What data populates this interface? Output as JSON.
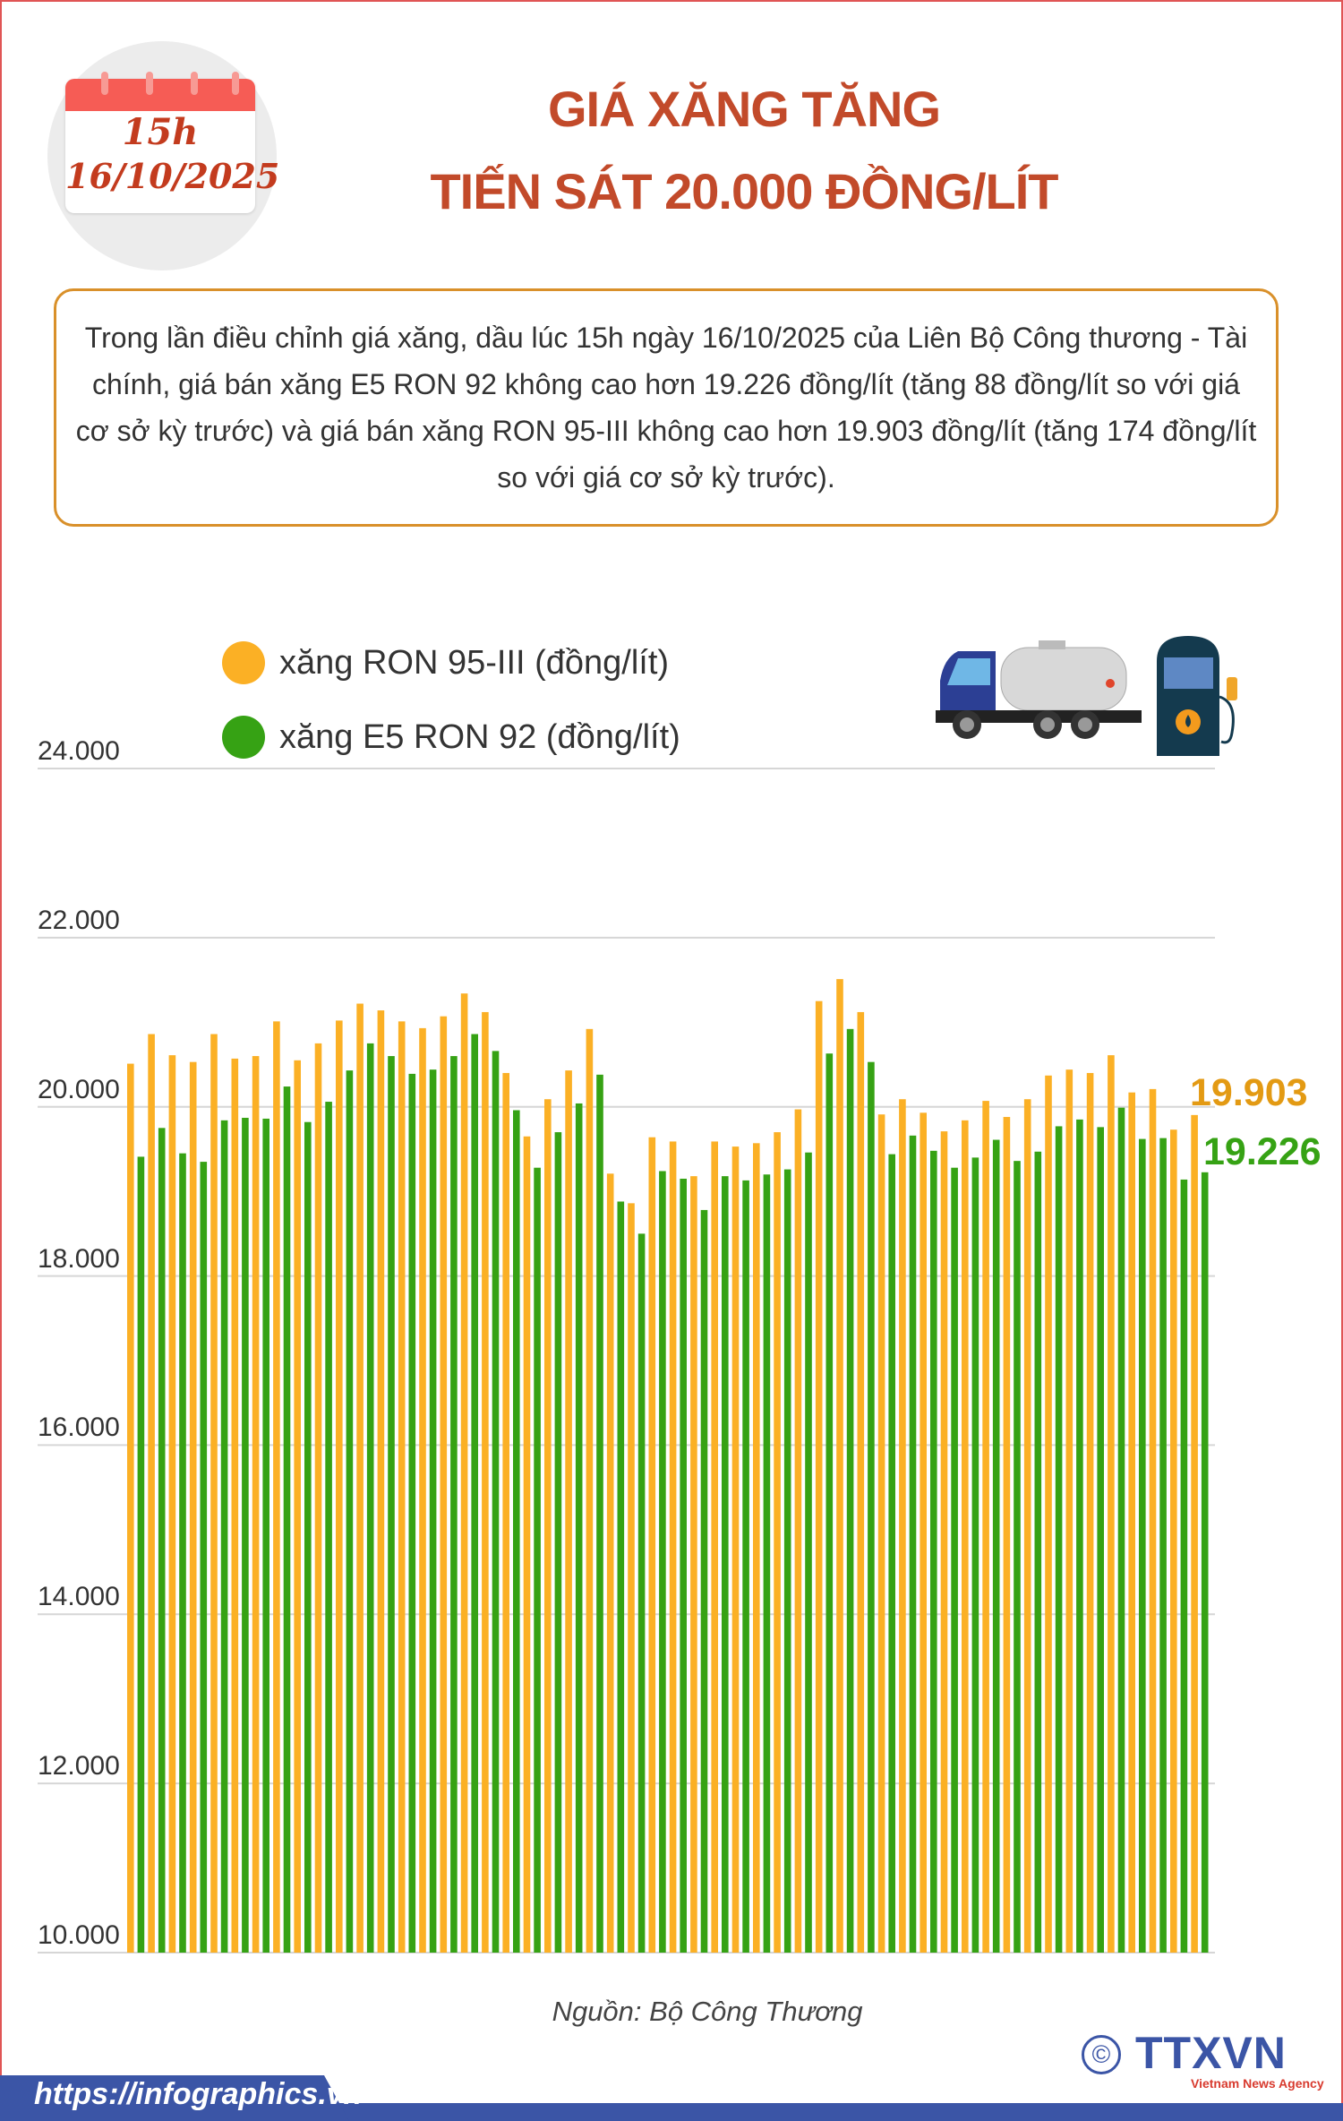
{
  "header": {
    "calendar_time": "15h",
    "calendar_date": "16/10/2025",
    "title_line1": "GIÁ XĂNG TĂNG",
    "title_line2": "TIẾN SÁT 20.000 ĐỒNG/LÍT"
  },
  "summary": "Trong lần điều chỉnh giá xăng, dầu lúc 15h ngày 16/10/2025 của Liên Bộ Công thương - Tài chính, giá bán xăng E5 RON 92 không cao hơn 19.226 đồng/lít (tăng 88 đồng/lít so với giá cơ sở kỳ trước) và giá bán xăng RON 95-III không cao hơn 19.903 đồng/lít (tăng 174 đồng/lít so với giá cơ sở kỳ trước).",
  "icons": [
    "fuel-tanker-truck-icon",
    "fuel-pump-icon"
  ],
  "chart_data": {
    "type": "bar",
    "ylim": [
      10000,
      24000
    ],
    "yticks": [
      10000,
      12000,
      14000,
      16000,
      18000,
      20000,
      22000,
      24000
    ],
    "ytick_labels": [
      "10.000",
      "12.000",
      "14.000",
      "16.000",
      "18.000",
      "20.000",
      "22.000",
      "24.000"
    ],
    "grid": true,
    "legend_placement": "top-left",
    "series": [
      {
        "name": "xăng RON 95-III (đồng/lít)",
        "color": "#fbb025",
        "values": [
          20510,
          20860,
          20610,
          20530,
          20860,
          20570,
          20600,
          21010,
          20550,
          20750,
          21020,
          21220,
          21140,
          21010,
          20930,
          21070,
          21340,
          21120,
          20400,
          19650,
          20090,
          20430,
          20920,
          19210,
          18860,
          19640,
          19590,
          19180,
          19590,
          19530,
          19570,
          19700,
          19970,
          21250,
          21510,
          21120,
          19910,
          20090,
          19930,
          19710,
          19840,
          20070,
          19880,
          20090,
          20370,
          20440,
          20400,
          20610,
          20170,
          20210,
          19730,
          19903
        ]
      },
      {
        "name": "xăng E5 RON 92 (đồng/lít)",
        "color": "#36a214",
        "values": [
          19410,
          19750,
          19450,
          19350,
          19840,
          19870,
          19860,
          20240,
          19820,
          20060,
          20430,
          20750,
          20600,
          20390,
          20440,
          20600,
          20860,
          20660,
          19960,
          19280,
          19700,
          20040,
          20380,
          18880,
          18500,
          19240,
          19150,
          18780,
          19180,
          19130,
          19200,
          19260,
          19460,
          20630,
          20920,
          20530,
          19440,
          19660,
          19480,
          19280,
          19400,
          19610,
          19360,
          19470,
          19770,
          19850,
          19760,
          19990,
          19620,
          19630,
          19140,
          19226
        ]
      }
    ],
    "end_labels": {
      "ron95": "19.903",
      "e5": "19.226"
    }
  },
  "source": "Nguồn: Bộ Công Thương",
  "footer": {
    "url": "https://infographics.vn",
    "copyright_symbol": "©",
    "logo_text": "TTXVN",
    "logo_subtitle": "Vietnam News Agency"
  }
}
